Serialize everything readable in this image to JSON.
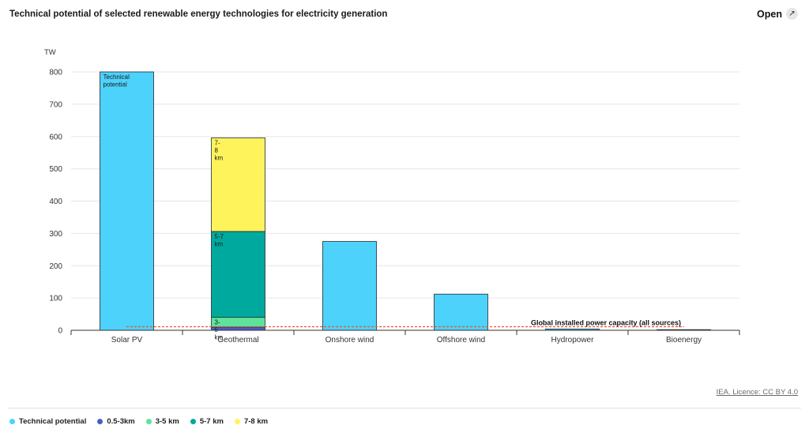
{
  "header": {
    "title": "Technical potential of selected renewable energy technologies for electricity generation",
    "open_label": "Open",
    "open_icon": "external-open-icon"
  },
  "chart_data": {
    "type": "bar",
    "stacked": true,
    "ylabel": "TW",
    "ylim": [
      0,
      800
    ],
    "yticks": [
      0,
      100,
      200,
      300,
      400,
      500,
      600,
      700,
      800
    ],
    "grid": true,
    "categories": [
      "Solar PV",
      "Geothermal",
      "Onshore wind",
      "Offshore wind",
      "Hydropower",
      "Bioenergy"
    ],
    "series": [
      {
        "name": "Technical potential",
        "color": "#4dd2fb",
        "values": [
          800,
          0,
          275,
          112,
          4,
          2
        ]
      },
      {
        "name": "0.5-3km",
        "color": "#4a5ec9",
        "values": [
          0,
          10,
          0,
          0,
          0,
          0
        ]
      },
      {
        "name": "3-5 km",
        "color": "#5fe39a",
        "values": [
          0,
          30,
          0,
          0,
          0,
          0
        ]
      },
      {
        "name": "5-7 km",
        "color": "#00a99d",
        "values": [
          0,
          266,
          0,
          0,
          0,
          0
        ]
      },
      {
        "name": "7-8 km",
        "color": "#fff35c",
        "values": [
          0,
          290,
          0,
          0,
          0,
          0
        ]
      }
    ],
    "bar_labels": [
      {
        "category": "Solar PV",
        "series": "Technical potential",
        "text": [
          "Technical",
          "potential"
        ]
      },
      {
        "category": "Geothermal",
        "series": "3-5 km",
        "text": [
          "3-",
          "5",
          "km"
        ]
      },
      {
        "category": "Geothermal",
        "series": "5-7 km",
        "text": [
          "5-7",
          "km"
        ]
      },
      {
        "category": "Geothermal",
        "series": "7-8 km",
        "text": [
          "7-",
          "8",
          "km"
        ]
      }
    ],
    "reference_line": {
      "value": 11,
      "label": "Global installed power capacity (all sources)",
      "color": "#e8542f"
    },
    "legend_position": "bottom-left"
  },
  "footer": {
    "licence": "IEA. Licence: CC BY 4.0"
  }
}
